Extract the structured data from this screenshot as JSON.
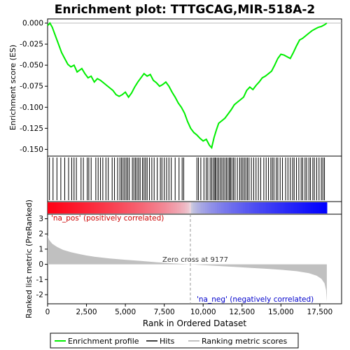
{
  "chart_data": {
    "type": "line",
    "title": "Enrichment plot: TTTGCAG,MIR-518A-2",
    "panels": {
      "enrichment": {
        "ylabel": "Enrichment score (ES)",
        "ylim": [
          -0.158,
          0.005
        ],
        "yticks": [
          "0.000",
          "-0.025",
          "-0.050",
          "-0.075",
          "-0.100",
          "-0.125",
          "-0.150"
        ],
        "ytick_values": [
          0.0,
          -0.025,
          -0.05,
          -0.075,
          -0.1,
          -0.125,
          -0.15
        ],
        "series": [
          {
            "name": "Enrichment profile",
            "color": "#00ee00",
            "x": [
              0,
              150,
              300,
              500,
              700,
              900,
              1100,
              1300,
              1500,
              1700,
              1900,
              2050,
              2200,
              2400,
              2600,
              2800,
              3000,
              3200,
              3400,
              3600,
              3800,
              4000,
              4200,
              4400,
              4600,
              4800,
              5000,
              5200,
              5400,
              5600,
              5800,
              6000,
              6200,
              6400,
              6600,
              6800,
              7000,
              7200,
              7400,
              7600,
              7800,
              8000,
              8200,
              8400,
              8600,
              8800,
              9000,
              9200,
              9400,
              9600,
              9800,
              10000,
              10200,
              10400,
              10550,
              10700,
              10850,
              11000,
              11200,
              11400,
              11600,
              11800,
              12000,
              12200,
              12400,
              12600,
              12800,
              13000,
              13200,
              13400,
              13600,
              13800,
              14000,
              14200,
              14400,
              14600,
              14800,
              15000,
              15200,
              15400,
              15600,
              15800,
              16000,
              16200,
              16400,
              16600,
              16800,
              17000,
              17200,
              17400,
              17600,
              17800,
              17950
            ],
            "y": [
              -0.003,
              0.0,
              -0.005,
              -0.015,
              -0.025,
              -0.035,
              -0.042,
              -0.049,
              -0.052,
              -0.05,
              -0.058,
              -0.056,
              -0.054,
              -0.06,
              -0.065,
              -0.063,
              -0.07,
              -0.066,
              -0.068,
              -0.071,
              -0.074,
              -0.077,
              -0.08,
              -0.085,
              -0.087,
              -0.085,
              -0.082,
              -0.088,
              -0.083,
              -0.076,
              -0.07,
              -0.065,
              -0.06,
              -0.063,
              -0.061,
              -0.068,
              -0.071,
              -0.075,
              -0.073,
              -0.07,
              -0.075,
              -0.082,
              -0.088,
              -0.095,
              -0.1,
              -0.107,
              -0.117,
              -0.125,
              -0.13,
              -0.133,
              -0.137,
              -0.14,
              -0.138,
              -0.145,
              -0.148,
              -0.136,
              -0.127,
              -0.119,
              -0.116,
              -0.113,
              -0.108,
              -0.103,
              -0.097,
              -0.094,
              -0.091,
              -0.088,
              -0.08,
              -0.076,
              -0.079,
              -0.074,
              -0.07,
              -0.065,
              -0.063,
              -0.06,
              -0.057,
              -0.05,
              -0.042,
              -0.037,
              -0.038,
              -0.04,
              -0.042,
              -0.035,
              -0.027,
              -0.02,
              -0.018,
              -0.015,
              -0.012,
              -0.009,
              -0.007,
              -0.005,
              -0.004,
              -0.002,
              0.0
            ]
          }
        ]
      },
      "hits": {
        "x": [
          120,
          350,
          600,
          850,
          1100,
          1350,
          1550,
          1700,
          1850,
          2150,
          2300,
          2550,
          2650,
          2800,
          3100,
          3250,
          3400,
          3550,
          3750,
          3900,
          4150,
          4300,
          4500,
          4650,
          4750,
          4850,
          4950,
          5050,
          5150,
          5250,
          5450,
          5550,
          5650,
          5750,
          5850,
          5950,
          6100,
          6200,
          6300,
          6400,
          6550,
          6700,
          6850,
          7050,
          7250,
          7350,
          7500,
          7650,
          7800,
          7950,
          8200,
          8450,
          8650,
          8750,
          9600,
          9700,
          9850,
          10050,
          10200,
          10300,
          10450,
          10550,
          10650,
          10750,
          10800,
          10900,
          11000,
          11100,
          11200,
          11300,
          11400,
          11500,
          11600,
          11700,
          11750,
          11850,
          11950,
          12050,
          12200,
          12350,
          12450,
          12550,
          12650,
          12750,
          12850,
          12950,
          13100,
          13250,
          13400,
          13550,
          13700,
          13900,
          14050,
          14200,
          14350,
          14450,
          14550,
          14700,
          14800,
          14950,
          15100,
          15300,
          15450,
          15600,
          15750,
          15850,
          16000,
          16150,
          16300,
          16400,
          16550,
          16650,
          16800,
          16900,
          17050,
          17150,
          17300,
          17450,
          17600,
          17700,
          17800
        ]
      },
      "ranked_metric": {
        "ylabel": "Ranked list metric (PreRanked)",
        "ylim": [
          -2.6,
          3.3
        ],
        "yticks": [
          "3",
          "2",
          "1",
          "0",
          "-1",
          "-2"
        ],
        "ytick_values": [
          3,
          2,
          1,
          0,
          -1,
          -2
        ],
        "xlabel": "Rank in Ordered Dataset",
        "xlim": [
          0,
          18900
        ],
        "xticks": [
          "0",
          "2,500",
          "5,000",
          "7,500",
          "10,000",
          "12,500",
          "15,000",
          "17,500"
        ],
        "xtick_values": [
          0,
          2500,
          5000,
          7500,
          10000,
          12500,
          15000,
          17500
        ],
        "zero_cross": 9177,
        "n_genes": 17950,
        "pos_label": "'na_pos' (positively correlated)",
        "neg_label": "'na_neg' (negatively correlated)",
        "zero_label": "Zero cross at 9177",
        "curve": {
          "x": [
            0,
            100,
            300,
            600,
            1000,
            1500,
            2000,
            2500,
            3000,
            4000,
            5000,
            6000,
            7000,
            8000,
            9177,
            10000,
            11000,
            12000,
            13000,
            14000,
            15000,
            16000,
            16800,
            17300,
            17600,
            17800,
            17900,
            17950
          ],
          "y": [
            1.9,
            1.6,
            1.35,
            1.15,
            0.95,
            0.8,
            0.68,
            0.58,
            0.5,
            0.38,
            0.3,
            0.22,
            0.14,
            0.07,
            0.0,
            -0.05,
            -0.11,
            -0.17,
            -0.23,
            -0.29,
            -0.36,
            -0.45,
            -0.58,
            -0.75,
            -0.95,
            -1.25,
            -1.7,
            -2.45
          ]
        }
      }
    },
    "legend": {
      "placement": "bottom",
      "entries": [
        {
          "label": "Enrichment profile",
          "color": "#00ee00"
        },
        {
          "label": "Hits",
          "color": "#000000"
        },
        {
          "label": "Ranking metric scores",
          "color": "#c0c0c0"
        }
      ]
    },
    "grid": false,
    "colors": {
      "profile": "#00ee00",
      "metric_fill": "#c0c0c0",
      "pos_text": "#cc0000",
      "neg_text": "#0000cc",
      "zero_line": "#999999"
    }
  }
}
